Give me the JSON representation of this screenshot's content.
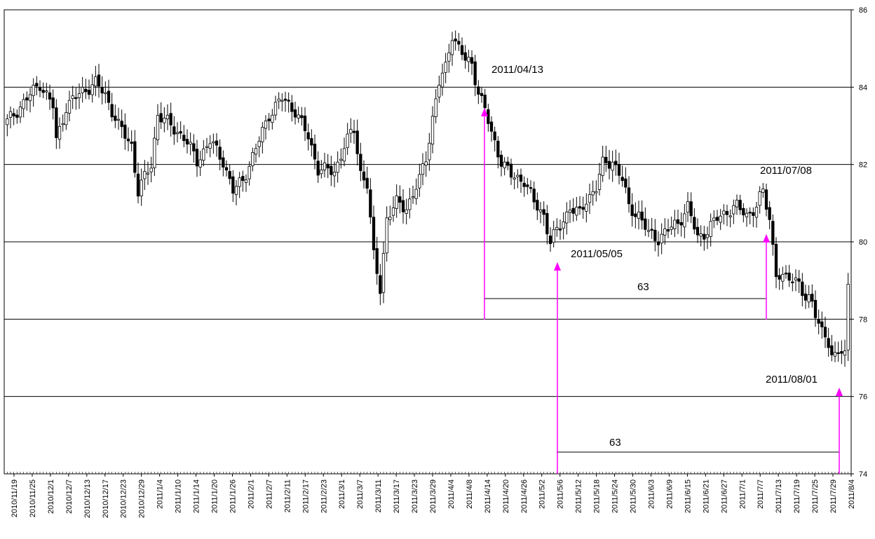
{
  "chart_data": {
    "type": "candlestick",
    "title": "",
    "xlabel": "",
    "ylabel": "",
    "ylim": [
      74,
      86
    ],
    "yticks": [
      "74",
      "76",
      "78",
      "80",
      "82",
      "84",
      "86"
    ],
    "grid": "horizontal",
    "y_axis_position": "right",
    "x_tick_labels": [
      "2010/11/19",
      "2010/11/25",
      "2010/12/1",
      "2010/12/7",
      "2010/12/13",
      "2010/12/17",
      "2010/12/23",
      "2010/12/29",
      "2011/1/4",
      "2011/1/10",
      "2011/1/14",
      "2011/1/20",
      "2011/1/26",
      "2011/2/1",
      "2011/2/7",
      "2011/2/11",
      "2011/2/17",
      "2011/2/23",
      "2011/3/1",
      "2011/3/7",
      "2011/3/11",
      "2011/3/17",
      "2011/3/23",
      "2011/3/29",
      "2011/4/4",
      "2011/4/8",
      "2011/4/14",
      "2011/4/20",
      "2011/4/26",
      "2011/5/2",
      "2011/5/6",
      "2011/5/12",
      "2011/5/18",
      "2011/5/24",
      "2011/5/30",
      "2011/6/3",
      "2011/6/9",
      "2011/6/15",
      "2011/6/21",
      "2011/6/27",
      "2011/7/1",
      "2011/7/7",
      "2011/7/13",
      "2011/7/19",
      "2011/7/25",
      "2011/7/29",
      "2011/8/4"
    ],
    "close_anchors": [
      [
        0,
        83.1
      ],
      [
        6,
        83.7
      ],
      [
        10,
        84.1
      ],
      [
        14,
        83.5
      ],
      [
        15,
        82.6
      ],
      [
        18,
        83.5
      ],
      [
        23,
        83.9
      ],
      [
        27,
        84.1
      ],
      [
        30,
        83.8
      ],
      [
        34,
        83.0
      ],
      [
        38,
        82.5
      ],
      [
        40,
        81.3
      ],
      [
        44,
        82.0
      ],
      [
        46,
        83.3
      ],
      [
        50,
        83.0
      ],
      [
        54,
        82.7
      ],
      [
        58,
        82.1
      ],
      [
        62,
        82.6
      ],
      [
        66,
        82.1
      ],
      [
        69,
        81.3
      ],
      [
        72,
        81.6
      ],
      [
        76,
        82.4
      ],
      [
        80,
        83.3
      ],
      [
        84,
        83.7
      ],
      [
        88,
        83.4
      ],
      [
        92,
        82.7
      ],
      [
        95,
        81.9
      ],
      [
        100,
        81.8
      ],
      [
        103,
        82.5
      ],
      [
        106,
        82.9
      ],
      [
        108,
        81.8
      ],
      [
        110,
        81.5
      ],
      [
        112,
        79.6
      ],
      [
        114,
        78.8
      ],
      [
        116,
        80.6
      ],
      [
        119,
        81.0
      ],
      [
        122,
        80.9
      ],
      [
        124,
        81.2
      ],
      [
        126,
        81.6
      ],
      [
        128,
        82.2
      ],
      [
        130,
        83.2
      ],
      [
        132,
        84.1
      ],
      [
        134,
        84.5
      ],
      [
        136,
        85.4
      ],
      [
        138,
        85.0
      ],
      [
        140,
        84.7
      ],
      [
        142,
        84.6
      ],
      [
        144,
        83.9
      ],
      [
        146,
        83.4
      ],
      [
        148,
        82.8
      ],
      [
        151,
        82.1
      ],
      [
        154,
        81.7
      ],
      [
        158,
        81.6
      ],
      [
        161,
        81.0
      ],
      [
        164,
        80.7
      ],
      [
        166,
        80.0
      ],
      [
        169,
        80.4
      ],
      [
        172,
        80.9
      ],
      [
        175,
        80.7
      ],
      [
        177,
        81.1
      ],
      [
        180,
        81.4
      ],
      [
        182,
        82.0
      ],
      [
        185,
        82.1
      ],
      [
        188,
        81.6
      ],
      [
        190,
        80.9
      ],
      [
        193,
        80.7
      ],
      [
        196,
        80.2
      ],
      [
        199,
        80.1
      ],
      [
        202,
        80.3
      ],
      [
        205,
        80.5
      ],
      [
        208,
        80.9
      ],
      [
        211,
        80.1
      ],
      [
        214,
        80.3
      ],
      [
        217,
        80.6
      ],
      [
        220,
        80.8
      ],
      [
        223,
        80.9
      ],
      [
        226,
        80.7
      ],
      [
        229,
        80.9
      ],
      [
        231,
        81.3
      ],
      [
        233,
        80.6
      ],
      [
        235,
        79.2
      ],
      [
        237,
        79.0
      ],
      [
        239,
        79.1
      ],
      [
        242,
        79.0
      ],
      [
        244,
        78.4
      ],
      [
        246,
        78.5
      ],
      [
        248,
        77.9
      ],
      [
        250,
        77.6
      ],
      [
        252,
        76.9
      ],
      [
        254,
        77.3
      ],
      [
        256,
        77.1
      ],
      [
        257,
        78.9
      ]
    ]
  },
  "annotations": {
    "date_labels": [
      "2011/04/13",
      "2011/05/05",
      "2011/07/08",
      "2011/08/01"
    ],
    "interval_labels": [
      "63",
      "63"
    ]
  },
  "colors": {
    "arrow": "#ff00ff",
    "candle_outline": "#000000",
    "candle_up": "#ffffff",
    "candle_down": "#000000",
    "grid": "#000000"
  }
}
